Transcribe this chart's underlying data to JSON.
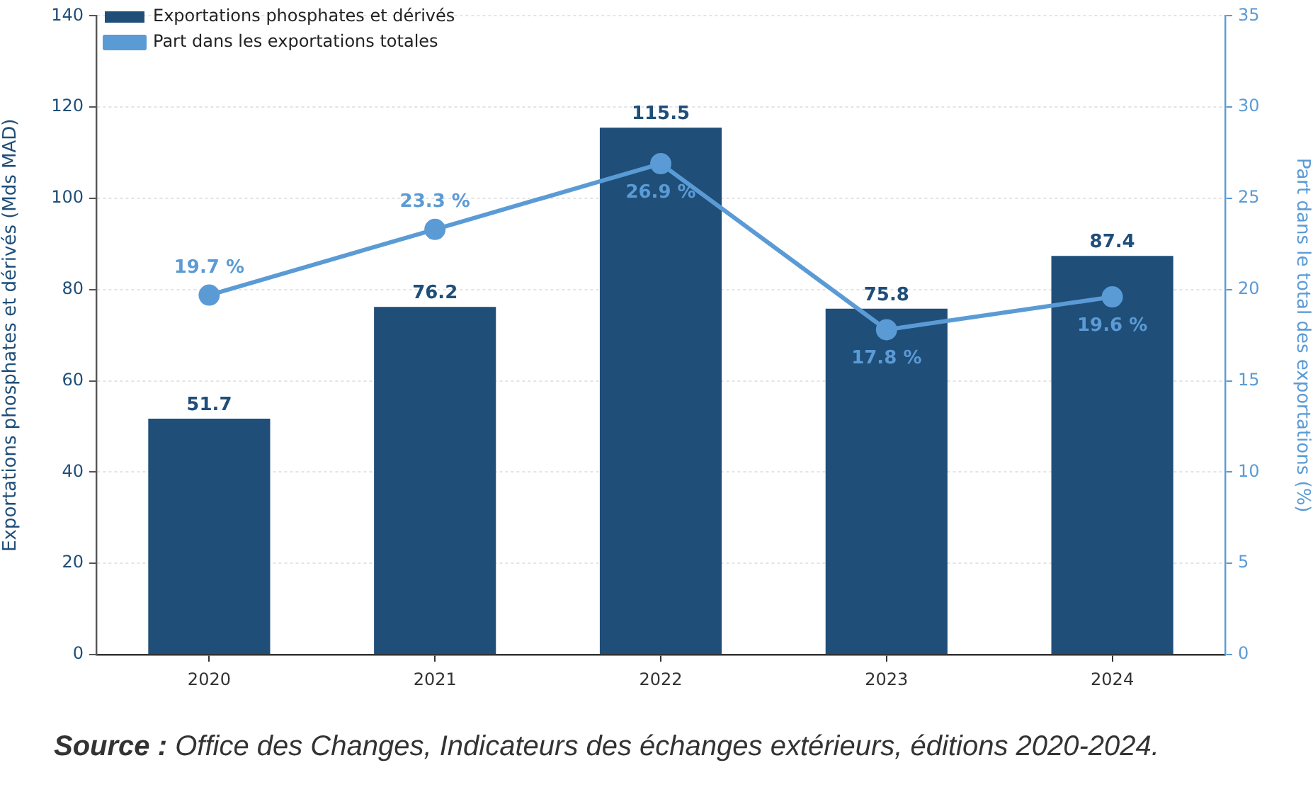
{
  "chart_data": {
    "type": "bar",
    "categories": [
      "2020",
      "2021",
      "2022",
      "2023",
      "2024"
    ],
    "series": [
      {
        "name": "Exportations phosphates et dérivés",
        "color": "#1f4e79",
        "values": [
          51.7,
          76.2,
          115.5,
          75.8,
          87.4
        ],
        "value_labels": [
          "51.7",
          "76.2",
          "115.5",
          "75.8",
          "87.4"
        ]
      },
      {
        "name": "Part dans les exportations totales",
        "type": "line",
        "axis": "y2",
        "color": "#5b9bd5",
        "values": [
          19.7,
          23.3,
          26.9,
          17.8,
          19.6
        ],
        "value_labels": [
          "19.7 %",
          "23.3 %",
          "26.9 %",
          "17.8 %",
          "19.6 %"
        ]
      }
    ],
    "ylabel": "Exportations phosphates et dérivés (Mds MAD)",
    "y2label": "Part dans le total des exportations (%)",
    "ylim": [
      0,
      140
    ],
    "yticks": [
      0,
      20,
      40,
      60,
      80,
      100,
      120,
      140
    ],
    "y2lim": [
      0,
      35
    ],
    "y2ticks": [
      0,
      5,
      10,
      15,
      20,
      25,
      30,
      35
    ],
    "grid": "y",
    "legend": "top left",
    "marker": "circle",
    "line_style": "solid",
    "annotations": [
      "Source : Office des Changes, Indicateurs des échanges extérieurs, éditions 2020-2024."
    ]
  }
}
